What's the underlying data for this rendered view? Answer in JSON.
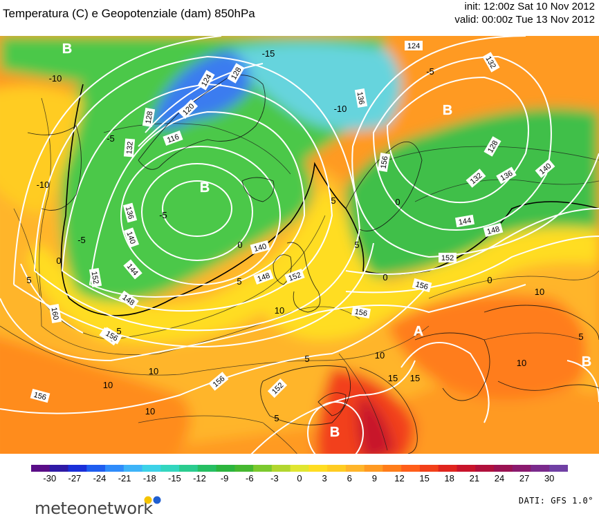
{
  "header": {
    "title": "Temperatura (C) e Geopotenziale (dam) 850hPa",
    "init": "init: 12:00z Sat 10 Nov 2012",
    "valid": "valid: 00:00z Tue 13 Nov 2012"
  },
  "map": {
    "colors": {
      "deep_green": "#1fa83c",
      "green": "#4cc84a",
      "light_green": "#8ed64f",
      "cyan": "#33ccdd",
      "light_blue": "#66ccff",
      "blue": "#3366ff",
      "yellow": "#ffdd22",
      "light_orange": "#ffb52a",
      "orange": "#ff8c1a",
      "red_orange": "#ff5a1a",
      "red": "#e8201a",
      "dark_red": "#c2102b",
      "contour": "#ffffff",
      "isotherm": "#000000"
    },
    "pressure_centers": [
      {
        "id": "low-greenland-nw",
        "label": "B"
      },
      {
        "id": "low-atlantic",
        "label": "B"
      },
      {
        "id": "low-scandinavia",
        "label": "B"
      },
      {
        "id": "high-balkans",
        "label": "A"
      },
      {
        "id": "low-turkey",
        "label": "B"
      },
      {
        "id": "low-algeria",
        "label": "B"
      }
    ],
    "geopotential_labels": [
      "124",
      "132",
      "136",
      "128",
      "120",
      "116",
      "128",
      "124",
      "132",
      "136",
      "140",
      "144",
      "148",
      "152",
      "156",
      "160",
      "128",
      "132",
      "136",
      "140",
      "144",
      "148",
      "152",
      "156",
      "156",
      "140",
      "148",
      "152",
      "156",
      "156",
      "156",
      "152",
      "156"
    ],
    "isotherm_labels": [
      "-10",
      "-5",
      "-10",
      "-15",
      "5",
      "10",
      "5",
      "10",
      "5",
      "10",
      "0",
      "-5",
      "0",
      "5",
      "10",
      "15",
      "-5",
      "-10",
      "5",
      "10",
      "5",
      "-5",
      "0",
      "0",
      "10",
      "5",
      "5",
      "15",
      "0",
      "10"
    ]
  },
  "colorbar": {
    "colors": [
      "#5a0d87",
      "#2f1aa6",
      "#1a2fd9",
      "#1f5ef0",
      "#2f8cfb",
      "#3eb4f8",
      "#3dd2e8",
      "#33d6bf",
      "#2bcc8f",
      "#26bf63",
      "#2cb53e",
      "#46b830",
      "#7cc92e",
      "#b2d62f",
      "#e0e631",
      "#ffdd22",
      "#ffcc22",
      "#ffb52a",
      "#ff9a22",
      "#ff7d1a",
      "#ff5e1a",
      "#f2401a",
      "#e0251e",
      "#c8142b",
      "#b0103c",
      "#9a1252",
      "#8a1a6e",
      "#7a2a8c",
      "#7040a4"
    ],
    "ticks": [
      "-30",
      "-27",
      "-24",
      "-21",
      "-18",
      "-15",
      "-12",
      "-9",
      "-6",
      "-3",
      "0",
      "3",
      "6",
      "9",
      "12",
      "15",
      "18",
      "21",
      "24",
      "27",
      "30"
    ]
  },
  "footer": {
    "logo_text": "meteonetwork",
    "dati": "DATI:  GFS  1.0°"
  }
}
